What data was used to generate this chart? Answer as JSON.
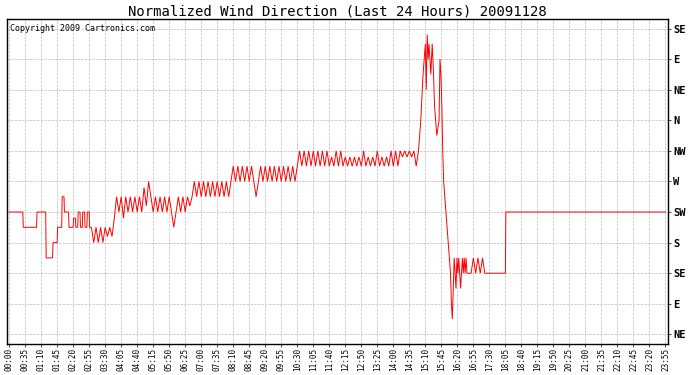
{
  "title": "Normalized Wind Direction (Last 24 Hours) 20091128",
  "copyright": "Copyright 2009 Cartronics.com",
  "background_color": "#ffffff",
  "line_color": "#ff0000",
  "grid_color": "#aaaaaa",
  "ytick_labels": [
    "SE",
    "E",
    "NE",
    "N",
    "NW",
    "W",
    "SW",
    "S",
    "SE",
    "E",
    "NE"
  ],
  "ytick_values": [
    10,
    9,
    8,
    7,
    6,
    5,
    4,
    3,
    2,
    1,
    0
  ],
  "ylim": [
    -0.3,
    10.3
  ],
  "xtick_labels": [
    "00:00",
    "00:35",
    "01:10",
    "01:45",
    "02:20",
    "02:55",
    "03:30",
    "04:05",
    "04:40",
    "05:15",
    "05:50",
    "06:25",
    "07:00",
    "07:35",
    "08:10",
    "08:45",
    "09:20",
    "09:55",
    "10:30",
    "11:05",
    "11:40",
    "12:15",
    "12:50",
    "13:25",
    "14:00",
    "14:35",
    "15:10",
    "15:45",
    "16:20",
    "16:55",
    "17:30",
    "18:05",
    "18:40",
    "19:15",
    "19:50",
    "20:25",
    "21:00",
    "21:35",
    "22:10",
    "22:45",
    "23:20",
    "23:55"
  ],
  "time_values": [
    0,
    35,
    70,
    105,
    140,
    175,
    210,
    245,
    280,
    315,
    350,
    385,
    420,
    455,
    490,
    525,
    560,
    595,
    630,
    665,
    700,
    735,
    770,
    805,
    840,
    875,
    910,
    945,
    980,
    1015,
    1050,
    1085,
    1120,
    1155,
    1190,
    1225,
    1260,
    1295,
    1330,
    1365,
    1400,
    1435
  ],
  "wind_data": [
    [
      0,
      4.0
    ],
    [
      5,
      4.0
    ],
    [
      30,
      4.0
    ],
    [
      31,
      3.5
    ],
    [
      60,
      3.5
    ],
    [
      61,
      4.0
    ],
    [
      80,
      4.0
    ],
    [
      81,
      2.5
    ],
    [
      95,
      2.5
    ],
    [
      96,
      3.0
    ],
    [
      105,
      3.0
    ],
    [
      106,
      3.5
    ],
    [
      115,
      3.5
    ],
    [
      116,
      4.5
    ],
    [
      120,
      4.5
    ],
    [
      121,
      4.0
    ],
    [
      130,
      4.0
    ],
    [
      131,
      3.5
    ],
    [
      140,
      3.5
    ],
    [
      141,
      3.8
    ],
    [
      145,
      3.8
    ],
    [
      146,
      3.5
    ],
    [
      150,
      3.5
    ],
    [
      151,
      4.0
    ],
    [
      155,
      4.0
    ],
    [
      156,
      3.5
    ],
    [
      160,
      3.5
    ],
    [
      161,
      4.0
    ],
    [
      165,
      4.0
    ],
    [
      166,
      3.5
    ],
    [
      170,
      3.5
    ],
    [
      171,
      4.0
    ],
    [
      175,
      4.0
    ],
    [
      176,
      3.5
    ],
    [
      180,
      3.5
    ],
    [
      185,
      3.0
    ],
    [
      190,
      3.5
    ],
    [
      195,
      3.0
    ],
    [
      200,
      3.5
    ],
    [
      205,
      3.0
    ],
    [
      210,
      3.5
    ],
    [
      215,
      3.2
    ],
    [
      220,
      3.5
    ],
    [
      225,
      3.2
    ],
    [
      230,
      3.8
    ],
    [
      235,
      4.5
    ],
    [
      240,
      4.0
    ],
    [
      245,
      4.5
    ],
    [
      250,
      3.8
    ],
    [
      255,
      4.5
    ],
    [
      260,
      4.0
    ],
    [
      265,
      4.5
    ],
    [
      270,
      4.0
    ],
    [
      275,
      4.5
    ],
    [
      280,
      4.0
    ],
    [
      285,
      4.5
    ],
    [
      290,
      4.0
    ],
    [
      295,
      4.8
    ],
    [
      300,
      4.2
    ],
    [
      305,
      5.0
    ],
    [
      310,
      4.5
    ],
    [
      315,
      4.0
    ],
    [
      320,
      4.5
    ],
    [
      325,
      4.0
    ],
    [
      330,
      4.5
    ],
    [
      335,
      4.0
    ],
    [
      340,
      4.5
    ],
    [
      345,
      4.0
    ],
    [
      350,
      4.5
    ],
    [
      355,
      4.0
    ],
    [
      360,
      3.5
    ],
    [
      365,
      4.0
    ],
    [
      370,
      4.5
    ],
    [
      375,
      4.0
    ],
    [
      380,
      4.5
    ],
    [
      385,
      4.0
    ],
    [
      390,
      4.5
    ],
    [
      395,
      4.2
    ],
    [
      400,
      4.5
    ],
    [
      405,
      5.0
    ],
    [
      410,
      4.5
    ],
    [
      415,
      5.0
    ],
    [
      420,
      4.5
    ],
    [
      425,
      5.0
    ],
    [
      430,
      4.5
    ],
    [
      435,
      5.0
    ],
    [
      440,
      4.5
    ],
    [
      445,
      5.0
    ],
    [
      450,
      4.5
    ],
    [
      455,
      5.0
    ],
    [
      460,
      4.5
    ],
    [
      465,
      5.0
    ],
    [
      470,
      4.5
    ],
    [
      475,
      5.0
    ],
    [
      480,
      4.5
    ],
    [
      485,
      5.0
    ],
    [
      490,
      5.5
    ],
    [
      495,
      5.0
    ],
    [
      500,
      5.5
    ],
    [
      505,
      5.0
    ],
    [
      510,
      5.5
    ],
    [
      515,
      5.0
    ],
    [
      520,
      5.5
    ],
    [
      525,
      5.0
    ],
    [
      530,
      5.5
    ],
    [
      535,
      5.0
    ],
    [
      540,
      4.5
    ],
    [
      545,
      5.0
    ],
    [
      550,
      5.5
    ],
    [
      555,
      5.0
    ],
    [
      560,
      5.5
    ],
    [
      565,
      5.0
    ],
    [
      570,
      5.5
    ],
    [
      575,
      5.0
    ],
    [
      580,
      5.5
    ],
    [
      585,
      5.0
    ],
    [
      590,
      5.5
    ],
    [
      595,
      5.0
    ],
    [
      600,
      5.5
    ],
    [
      605,
      5.0
    ],
    [
      610,
      5.5
    ],
    [
      615,
      5.0
    ],
    [
      620,
      5.5
    ],
    [
      625,
      5.0
    ],
    [
      630,
      5.5
    ],
    [
      635,
      6.0
    ],
    [
      640,
      5.5
    ],
    [
      645,
      6.0
    ],
    [
      650,
      5.5
    ],
    [
      655,
      6.0
    ],
    [
      660,
      5.5
    ],
    [
      665,
      6.0
    ],
    [
      670,
      5.5
    ],
    [
      675,
      6.0
    ],
    [
      680,
      5.5
    ],
    [
      685,
      6.0
    ],
    [
      690,
      5.5
    ],
    [
      695,
      6.0
    ],
    [
      700,
      5.5
    ],
    [
      705,
      5.8
    ],
    [
      710,
      5.5
    ],
    [
      715,
      6.0
    ],
    [
      720,
      5.5
    ],
    [
      725,
      6.0
    ],
    [
      730,
      5.5
    ],
    [
      735,
      5.8
    ],
    [
      740,
      5.5
    ],
    [
      745,
      5.8
    ],
    [
      750,
      5.5
    ],
    [
      755,
      5.8
    ],
    [
      760,
      5.5
    ],
    [
      765,
      5.8
    ],
    [
      770,
      5.5
    ],
    [
      775,
      6.0
    ],
    [
      780,
      5.5
    ],
    [
      785,
      5.8
    ],
    [
      790,
      5.5
    ],
    [
      795,
      5.8
    ],
    [
      800,
      5.5
    ],
    [
      805,
      6.0
    ],
    [
      810,
      5.5
    ],
    [
      815,
      5.8
    ],
    [
      820,
      5.5
    ],
    [
      825,
      5.8
    ],
    [
      830,
      5.5
    ],
    [
      835,
      6.0
    ],
    [
      840,
      5.5
    ],
    [
      845,
      6.0
    ],
    [
      850,
      5.5
    ],
    [
      855,
      6.0
    ],
    [
      860,
      5.8
    ],
    [
      865,
      6.0
    ],
    [
      870,
      5.8
    ],
    [
      875,
      6.0
    ],
    [
      880,
      5.8
    ],
    [
      885,
      6.0
    ],
    [
      890,
      5.5
    ],
    [
      895,
      6.0
    ],
    [
      900,
      7.0
    ],
    [
      905,
      8.5
    ],
    [
      910,
      9.5
    ],
    [
      912,
      8.0
    ],
    [
      914,
      9.8
    ],
    [
      916,
      9.0
    ],
    [
      918,
      9.5
    ],
    [
      920,
      9.0
    ],
    [
      922,
      8.5
    ],
    [
      925,
      9.5
    ],
    [
      928,
      8.5
    ],
    [
      930,
      7.5
    ],
    [
      935,
      6.5
    ],
    [
      940,
      7.0
    ],
    [
      942,
      9.0
    ],
    [
      944,
      8.5
    ],
    [
      946,
      7.5
    ],
    [
      948,
      6.0
    ],
    [
      950,
      5.0
    ],
    [
      955,
      4.0
    ],
    [
      960,
      3.0
    ],
    [
      965,
      2.0
    ],
    [
      967,
      1.0
    ],
    [
      969,
      0.5
    ],
    [
      971,
      1.5
    ],
    [
      973,
      2.5
    ],
    [
      975,
      2.0
    ],
    [
      977,
      1.5
    ],
    [
      979,
      2.5
    ],
    [
      981,
      2.0
    ],
    [
      983,
      2.5
    ],
    [
      985,
      2.0
    ],
    [
      987,
      1.5
    ],
    [
      989,
      2.0
    ],
    [
      991,
      2.5
    ],
    [
      993,
      2.0
    ],
    [
      995,
      2.5
    ],
    [
      997,
      2.0
    ],
    [
      999,
      2.5
    ],
    [
      1001,
      2.0
    ],
    [
      1010,
      2.0
    ],
    [
      1015,
      2.5
    ],
    [
      1020,
      2.0
    ],
    [
      1025,
      2.5
    ],
    [
      1030,
      2.0
    ],
    [
      1035,
      2.5
    ],
    [
      1040,
      2.0
    ],
    [
      1050,
      2.0
    ],
    [
      1060,
      2.0
    ],
    [
      1070,
      2.0
    ],
    [
      1080,
      2.0
    ],
    [
      1085,
      2.0
    ],
    [
      1086,
      4.0
    ],
    [
      1120,
      4.0
    ],
    [
      1121,
      4.0
    ],
    [
      1435,
      4.0
    ]
  ]
}
